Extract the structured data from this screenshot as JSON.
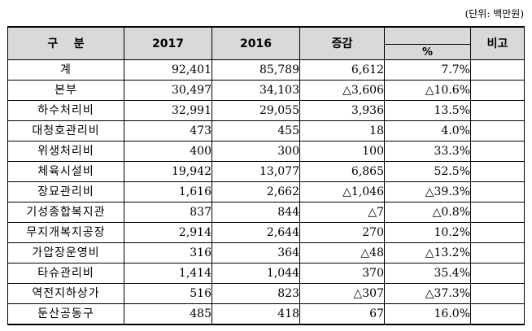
{
  "unit_note": "(단위: 백만원)",
  "header": {
    "category": "구    분",
    "y2017": "2017",
    "y2016": "2016",
    "change": "증감",
    "pct": "%",
    "note": "비고"
  },
  "rows": [
    {
      "category": "계",
      "y2017": "92,401",
      "y2016": "85,789",
      "change": "6,612",
      "pct": "7.7%",
      "note": ""
    },
    {
      "category": "본부",
      "y2017": "30,497",
      "y2016": "34,103",
      "change": "△3,606",
      "pct": "△10.6%",
      "note": ""
    },
    {
      "category": "하수처리비",
      "y2017": "32,991",
      "y2016": "29,055",
      "change": "3,936",
      "pct": "13.5%",
      "note": ""
    },
    {
      "category": "대청호관리비",
      "y2017": "473",
      "y2016": "455",
      "change": "18",
      "pct": "4.0%",
      "note": ""
    },
    {
      "category": "위생처리비",
      "y2017": "400",
      "y2016": "300",
      "change": "100",
      "pct": "33.3%",
      "note": ""
    },
    {
      "category": "체육시설비",
      "y2017": "19,942",
      "y2016": "13,077",
      "change": "6,865",
      "pct": "52.5%",
      "note": ""
    },
    {
      "category": "장묘관리비",
      "y2017": "1,616",
      "y2016": "2,662",
      "change": "△1,046",
      "pct": "△39.3%",
      "note": ""
    },
    {
      "category": "기성종합복지관",
      "y2017": "837",
      "y2016": "844",
      "change": "△7",
      "pct": "△0.8%",
      "note": ""
    },
    {
      "category": "무지개복지공장",
      "y2017": "2,914",
      "y2016": "2,644",
      "change": "270",
      "pct": "10.2%",
      "note": ""
    },
    {
      "category": "가압장운영비",
      "y2017": "316",
      "y2016": "364",
      "change": "△48",
      "pct": "△13.2%",
      "note": ""
    },
    {
      "category": "타슈관리비",
      "y2017": "1,414",
      "y2016": "1,044",
      "change": "370",
      "pct": "35.4%",
      "note": ""
    },
    {
      "category": "역전지하상가",
      "y2017": "516",
      "y2016": "823",
      "change": "△307",
      "pct": "△37.3%",
      "note": ""
    },
    {
      "category": "둔산공동구",
      "y2017": "485",
      "y2016": "418",
      "change": "67",
      "pct": "16.0%",
      "note": ""
    }
  ]
}
